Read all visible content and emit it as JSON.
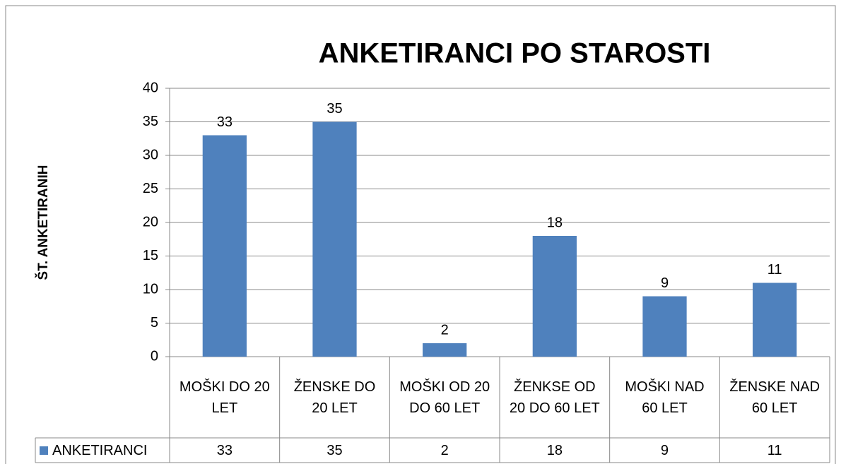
{
  "chart_data": {
    "type": "bar",
    "title": "ANKETIRANCI PO STAROSTI",
    "y_label": "ŠT. ANKETIRANIH",
    "categories": [
      "MOŠKI DO 20 LET",
      "ŽENSKE DO 20 LET",
      "MOŠKI OD 20 DO 60 LET",
      "ŽENKSE OD 20 DO 60 LET",
      "MOŠKI NAD 60 LET",
      "ŽENSKE NAD 60 LET"
    ],
    "series": [
      {
        "name": "ANKETIRANCI",
        "color": "#4f81bd",
        "values": [
          33,
          35,
          2,
          18,
          9,
          11
        ]
      }
    ],
    "ylim": [
      0,
      40
    ],
    "yticks": [
      0,
      5,
      10,
      15,
      20,
      25,
      30,
      35,
      40
    ],
    "grid": true,
    "data_table": true
  }
}
